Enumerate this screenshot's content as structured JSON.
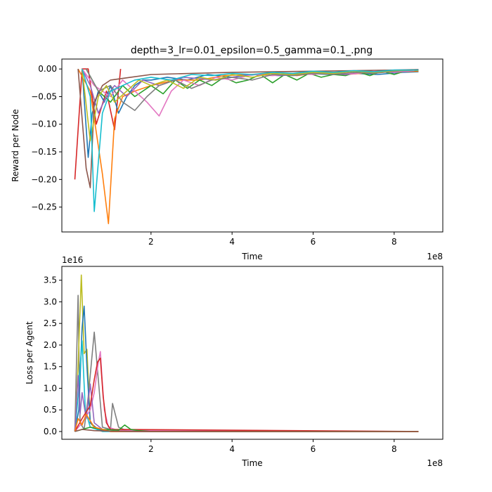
{
  "chart_data": [
    {
      "type": "line",
      "title": "depth=3_lr=0.01_epsilon=0.5_gamma=0.1_.png",
      "xlabel": "Time",
      "ylabel": "Reward per Node",
      "x_offset_label": "1e8",
      "y_offset_label": "",
      "xlim": [
        -0.2,
        9.2
      ],
      "ylim": [
        -0.295,
        0.018
      ],
      "xticks": [
        2,
        4,
        6,
        8
      ],
      "xtick_labels": [
        "2",
        "4",
        "6",
        "8"
      ],
      "yticks": [
        0.0,
        -0.05,
        -0.1,
        -0.15,
        -0.2,
        -0.25
      ],
      "ytick_labels": [
        "0.00",
        "−0.05",
        "−0.10",
        "−0.15",
        "−0.20",
        "−0.25"
      ],
      "grid": false,
      "legend": "none",
      "series": [
        {
          "color": "#d62728",
          "x": [
            0.12,
            0.3,
            0.45,
            0.65,
            0.9,
            1.1,
            1.25
          ],
          "y": [
            -0.2,
            0.0,
            0.0,
            -0.1,
            -0.04,
            -0.11,
            0.0
          ]
        },
        {
          "color": "#1f77b4",
          "x": [
            0.3,
            0.45,
            0.55,
            0.7,
            0.85,
            1.0,
            1.2,
            1.4,
            1.6,
            1.8,
            2.0,
            2.4,
            2.9,
            3.4,
            4.0,
            4.6,
            5.2,
            5.8,
            6.4,
            7.0,
            7.6,
            8.2,
            8.6
          ],
          "y": [
            0.0,
            -0.16,
            -0.08,
            -0.04,
            -0.06,
            -0.03,
            -0.08,
            -0.05,
            -0.03,
            -0.02,
            -0.02,
            -0.015,
            -0.02,
            -0.01,
            -0.015,
            -0.01,
            -0.012,
            -0.008,
            -0.01,
            -0.008,
            -0.01,
            -0.006,
            -0.005
          ]
        },
        {
          "color": "#ff7f0e",
          "x": [
            0.2,
            0.5,
            0.8,
            0.95,
            1.1,
            1.3,
            1.6,
            2.0,
            2.6,
            3.2,
            3.8,
            4.4,
            5.0,
            5.6,
            6.2,
            6.8,
            7.4,
            8.0,
            8.6
          ],
          "y": [
            0.0,
            -0.04,
            -0.19,
            -0.28,
            -0.09,
            -0.05,
            -0.04,
            -0.03,
            -0.02,
            -0.02,
            -0.012,
            -0.01,
            -0.008,
            -0.012,
            -0.006,
            -0.01,
            -0.007,
            -0.005,
            -0.004
          ]
        },
        {
          "color": "#2ca02c",
          "x": [
            0.4,
            0.7,
            1.0,
            1.3,
            1.6,
            2.0,
            2.3,
            2.6,
            2.9,
            3.2,
            3.5,
            3.8,
            4.1,
            4.4,
            4.7,
            5.0,
            5.3,
            5.6,
            5.9,
            6.2,
            6.5,
            6.8,
            7.1,
            7.4,
            7.7,
            8.0,
            8.3,
            8.6
          ],
          "y": [
            0.0,
            -0.04,
            -0.06,
            -0.03,
            -0.05,
            -0.03,
            -0.045,
            -0.02,
            -0.035,
            -0.02,
            -0.03,
            -0.015,
            -0.025,
            -0.02,
            -0.01,
            -0.025,
            -0.01,
            -0.02,
            -0.008,
            -0.015,
            -0.01,
            -0.012,
            -0.005,
            -0.012,
            -0.004,
            -0.01,
            -0.003,
            -0.002
          ]
        },
        {
          "color": "#9467bd",
          "x": [
            0.3,
            0.5,
            0.7,
            0.9,
            1.1,
            1.4,
            1.8,
            2.2,
            2.8,
            3.6,
            4.4,
            5.2,
            6.0,
            6.8,
            7.6,
            8.4
          ],
          "y": [
            0.0,
            -0.03,
            -0.08,
            -0.05,
            -0.03,
            -0.05,
            -0.02,
            -0.03,
            -0.015,
            -0.02,
            -0.01,
            -0.012,
            -0.006,
            -0.01,
            -0.004,
            -0.002
          ]
        },
        {
          "color": "#8c564b",
          "x": [
            0.2,
            0.4,
            0.5,
            0.6,
            0.8,
            1.0,
            1.5,
            2.0,
            3.0,
            4.0,
            5.0,
            6.0,
            7.0,
            8.0,
            8.6
          ],
          "y": [
            0.0,
            -0.18,
            -0.215,
            -0.06,
            -0.03,
            -0.02,
            -0.015,
            -0.01,
            -0.008,
            -0.006,
            -0.005,
            -0.004,
            -0.003,
            -0.002,
            -0.001
          ]
        },
        {
          "color": "#e377c2",
          "x": [
            0.3,
            0.6,
            1.0,
            1.3,
            1.6,
            1.9,
            2.2,
            2.5,
            2.8,
            3.2,
            3.6,
            4.0,
            4.5,
            5.0,
            5.5,
            6.0,
            6.5,
            7.0,
            7.5,
            8.0,
            8.5
          ],
          "y": [
            0.0,
            -0.03,
            -0.05,
            -0.02,
            -0.04,
            -0.06,
            -0.085,
            -0.04,
            -0.02,
            -0.03,
            -0.015,
            -0.02,
            -0.01,
            -0.012,
            -0.008,
            -0.01,
            -0.006,
            -0.009,
            -0.004,
            -0.006,
            -0.003
          ]
        },
        {
          "color": "#7f7f7f",
          "x": [
            0.4,
            0.7,
            1.0,
            1.3,
            1.6,
            1.9,
            2.2,
            2.6,
            3.0,
            3.5,
            4.0,
            4.5,
            5.0,
            5.5,
            6.0,
            6.5,
            7.0,
            7.5,
            8.0,
            8.5
          ],
          "y": [
            0.0,
            -0.04,
            -0.03,
            -0.06,
            -0.075,
            -0.05,
            -0.03,
            -0.02,
            -0.035,
            -0.02,
            -0.015,
            -0.02,
            -0.01,
            -0.012,
            -0.008,
            -0.01,
            -0.006,
            -0.008,
            -0.004,
            -0.002
          ]
        },
        {
          "color": "#bcbd22",
          "x": [
            0.3,
            0.5,
            0.7,
            0.9,
            1.1,
            1.4,
            1.7,
            2.0,
            2.4,
            2.8,
            3.2,
            3.6,
            4.0,
            4.5,
            5.0,
            5.5,
            6.0,
            6.5,
            7.0,
            7.5,
            8.0,
            8.5
          ],
          "y": [
            0.0,
            -0.13,
            -0.05,
            -0.03,
            -0.06,
            -0.04,
            -0.02,
            -0.03,
            -0.02,
            -0.035,
            -0.015,
            -0.02,
            -0.01,
            -0.015,
            -0.008,
            -0.01,
            -0.006,
            -0.008,
            -0.004,
            -0.006,
            -0.003,
            -0.002
          ]
        },
        {
          "color": "#17becf",
          "x": [
            0.3,
            0.5,
            0.6,
            0.8,
            1.0,
            1.3,
            1.6,
            2.0,
            2.5,
            3.0,
            3.5,
            4.0,
            4.5,
            5.0,
            5.5,
            6.0,
            6.5,
            7.0,
            7.5,
            8.0,
            8.6
          ],
          "y": [
            0.0,
            -0.05,
            -0.258,
            -0.08,
            -0.04,
            -0.03,
            -0.02,
            -0.015,
            -0.02,
            -0.01,
            -0.012,
            -0.008,
            -0.01,
            -0.006,
            -0.008,
            -0.004,
            -0.006,
            -0.003,
            -0.005,
            -0.002,
            -0.002
          ]
        }
      ]
    },
    {
      "type": "line",
      "title": "",
      "xlabel": "Time",
      "ylabel": "Loss per Agent",
      "x_offset_label": "1e8",
      "y_offset_label": "1e16",
      "xlim": [
        -0.2,
        9.2
      ],
      "ylim": [
        -0.18,
        3.82
      ],
      "xticks": [
        2,
        4,
        6,
        8
      ],
      "xtick_labels": [
        "2",
        "4",
        "6",
        "8"
      ],
      "yticks": [
        0.0,
        0.5,
        1.0,
        1.5,
        2.0,
        2.5,
        3.0,
        3.5
      ],
      "ytick_labels": [
        "0.0",
        "0.5",
        "1.0",
        "1.5",
        "2.0",
        "2.5",
        "3.0",
        "3.5"
      ],
      "grid": false,
      "legend": "none",
      "series": [
        {
          "color": "#7f7f7f",
          "x": [
            0.12,
            0.2,
            0.25,
            0.35,
            0.45,
            0.6,
            0.8,
            1.0,
            1.05,
            1.2,
            1.4,
            1.6,
            2.0,
            8.6
          ],
          "y": [
            0.0,
            3.15,
            0.2,
            0.05,
            0.8,
            2.3,
            0.1,
            0.05,
            0.65,
            0.1,
            0.02,
            0.0,
            0.0,
            0.0
          ]
        },
        {
          "color": "#bcbd22",
          "x": [
            0.12,
            0.2,
            0.28,
            0.35,
            0.42,
            0.5,
            0.6,
            0.8,
            1.0,
            1.5,
            8.6
          ],
          "y": [
            0.0,
            1.5,
            3.62,
            1.8,
            1.9,
            0.2,
            0.1,
            0.05,
            0.0,
            0.0,
            0.0
          ]
        },
        {
          "color": "#1f77b4",
          "x": [
            0.12,
            0.22,
            0.3,
            0.35,
            0.42,
            0.5,
            0.7,
            1.0,
            8.6
          ],
          "y": [
            0.0,
            0.5,
            2.4,
            2.9,
            1.5,
            0.2,
            0.05,
            0.0,
            0.0
          ]
        },
        {
          "color": "#17becf",
          "x": [
            0.12,
            0.2,
            0.3,
            0.38,
            0.5,
            0.8,
            8.6
          ],
          "y": [
            0.0,
            0.8,
            2.1,
            0.5,
            0.1,
            0.0,
            0.0
          ]
        },
        {
          "color": "#e377c2",
          "x": [
            0.12,
            0.3,
            0.5,
            0.6,
            0.7,
            0.75,
            0.8,
            0.85,
            0.95,
            1.2,
            8.6
          ],
          "y": [
            0.0,
            0.2,
            0.5,
            0.9,
            1.6,
            1.85,
            1.1,
            0.5,
            0.1,
            0.02,
            0.0
          ]
        },
        {
          "color": "#9467bd",
          "x": [
            0.12,
            0.2,
            0.25,
            0.3,
            0.4,
            0.5,
            0.6,
            0.8,
            1.0,
            8.6
          ],
          "y": [
            0.0,
            1.3,
            0.4,
            0.9,
            0.3,
            1.1,
            0.2,
            0.05,
            0.0,
            0.0
          ]
        },
        {
          "color": "#d62728",
          "x": [
            0.12,
            0.3,
            0.5,
            0.6,
            0.68,
            0.75,
            0.82,
            0.9,
            1.0,
            8.6
          ],
          "y": [
            0.0,
            0.3,
            0.6,
            1.2,
            1.6,
            1.7,
            0.8,
            0.2,
            0.05,
            0.0
          ]
        },
        {
          "color": "#2ca02c",
          "x": [
            0.12,
            0.5,
            0.8,
            1.2,
            1.35,
            1.5,
            1.7,
            2.0,
            8.6
          ],
          "y": [
            0.0,
            0.1,
            0.05,
            0.03,
            0.15,
            0.05,
            0.02,
            0.0,
            0.0
          ]
        },
        {
          "color": "#ff7f0e",
          "x": [
            0.12,
            0.2,
            0.3,
            0.4,
            0.6,
            1.0,
            8.6
          ],
          "y": [
            0.0,
            0.3,
            0.15,
            0.4,
            0.1,
            0.0,
            0.0
          ]
        },
        {
          "color": "#8c564b",
          "x": [
            0.12,
            0.3,
            0.6,
            1.0,
            2.0,
            4.0,
            6.0,
            8.0,
            8.6
          ],
          "y": [
            0.0,
            0.05,
            0.02,
            0.01,
            0.0,
            0.0,
            0.0,
            0.0,
            0.0
          ]
        }
      ]
    }
  ]
}
